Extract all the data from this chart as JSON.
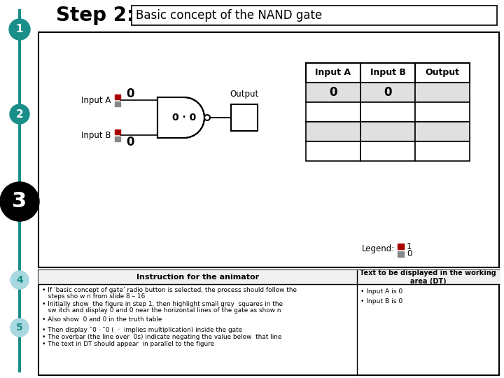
{
  "title_step": "Step 2:",
  "title_main": "Basic concept of the NAND gate",
  "teal_color": "#1a8f8a",
  "light_blue_step": "#a8d8e0",
  "input_a_label": "Input A",
  "input_b_label": "Input B",
  "output_label": "Output",
  "gate_text": "0 · 0",
  "table_headers": [
    "Input A",
    "Input B",
    "Output"
  ],
  "table_row1": [
    "0",
    "0",
    ""
  ],
  "legend_label": "Legend:",
  "instructor_header": "Instruction for the animator",
  "dt_header": "Text to be displayed in the working\narea (DT)",
  "bullet1_line1": "If ‘basic concept of gate’ radio button is selected, the process should follow the",
  "bullet1_line2": "steps sho w n from slide 8 – 16",
  "bullet2_line1": "Initially show  the figure in step 1, then highlight small grey  squares in the",
  "bullet2_line2": "sw itch and display 0 and 0 near the horizontal lines of the gate as show n",
  "bullet3": "Also show  0 and 0 in the truth table",
  "bullet4": "Then display ¯0 · ¯0 (  ·  implies multiplication) inside the gate",
  "bullet5": "The overbar (the line over  0s) indicate negating the value below  that line",
  "bullet6": "The text in DT should appear  in parallel to the figure",
  "dt_bullet1": "Input A is 0",
  "dt_bullet2": "Input B is 0",
  "red_color": "#aa0000",
  "grey_color": "#888888",
  "white": "#ffffff",
  "black": "#000000",
  "light_grey_row": "#e0e0e0",
  "bottom_hdr_bg": "#f0f0f0"
}
